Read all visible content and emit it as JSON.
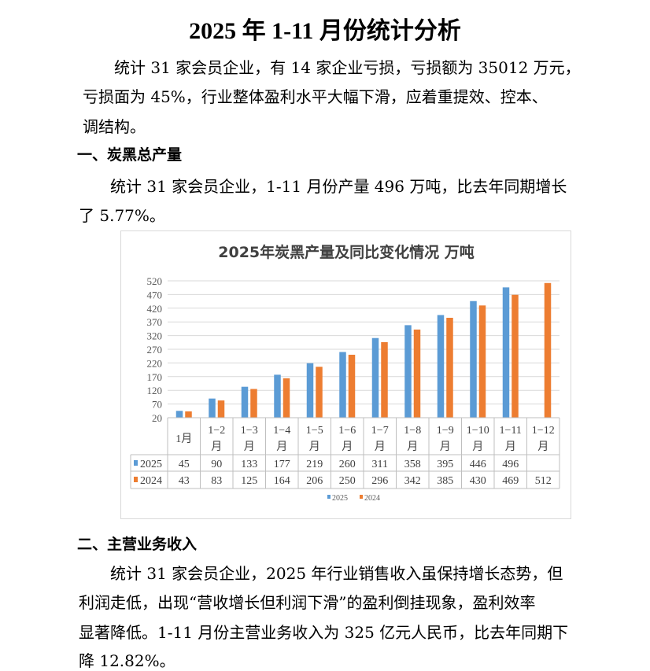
{
  "title": "2025 年 1-11 月份统计分析",
  "intro_lines": [
    "统计 31 家会员企业，有 14 家企业亏损，亏损额为 35012 万元，",
    "亏损面为 45%，行业整体盈利水平大幅下滑，应着重提效、控本、",
    "调结构。"
  ],
  "section1": {
    "heading": "一、炭黑总产量",
    "lines": [
      "统计 31 家会员企业，1-11 月份产量 496 万吨，比去年同期增长",
      "了 5.77%。"
    ]
  },
  "section2": {
    "heading": "二、主营业务收入",
    "lines": [
      "统计 31 家会员企业，2025 年行业销售收入虽保持增长态势，但",
      "利润走低，出现“营收增长但利润下滑”的盈利倒挂现象，盈利效率",
      "显著降低。1-11 月份主营业务收入为 325 亿元人民币，比去年同期下",
      "降 12.82%。"
    ]
  },
  "chart_data": {
    "type": "bar",
    "title": "2025年炭黑产量及同比变化情况  万吨",
    "categories": [
      [
        "1月",
        ""
      ],
      [
        "1−2",
        "月"
      ],
      [
        "1−3",
        "月"
      ],
      [
        "1−4",
        "月"
      ],
      [
        "1−5",
        "月"
      ],
      [
        "1−6",
        "月"
      ],
      [
        "1−7",
        "月"
      ],
      [
        "1−8",
        "月"
      ],
      [
        "1−9",
        "月"
      ],
      [
        "1−10",
        "月"
      ],
      [
        "1−11",
        "月"
      ],
      [
        "1−12",
        "月"
      ]
    ],
    "series": [
      {
        "name": "2025",
        "color": "#5b9bd5",
        "values": [
          45,
          90,
          133,
          177,
          219,
          260,
          311,
          358,
          395,
          446,
          496,
          null
        ]
      },
      {
        "name": "2024",
        "color": "#ed7d31",
        "values": [
          43,
          83,
          125,
          164,
          206,
          250,
          296,
          342,
          385,
          430,
          469,
          512
        ]
      }
    ],
    "yticks": [
      20,
      70,
      120,
      170,
      220,
      270,
      320,
      370,
      420,
      470,
      520
    ],
    "ylim": [
      20,
      520
    ],
    "grid": true,
    "legend": "bottom",
    "xlabel": "",
    "ylabel": ""
  }
}
